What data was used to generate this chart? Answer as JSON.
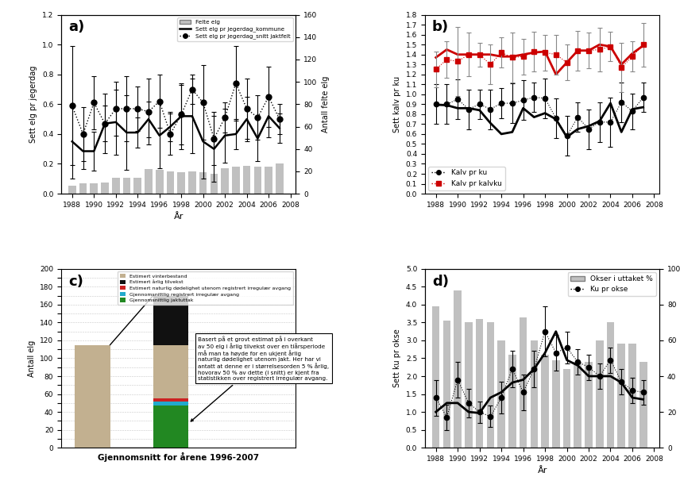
{
  "years": [
    1988,
    1989,
    1990,
    1991,
    1992,
    1993,
    1994,
    1995,
    1996,
    1997,
    1998,
    1999,
    2000,
    2001,
    2002,
    2003,
    2004,
    2005,
    2006,
    2007
  ],
  "a_felte_elg": [
    7,
    9,
    9,
    10,
    14,
    14,
    14,
    22,
    21,
    20,
    19,
    20,
    19,
    18,
    23,
    24,
    25,
    24,
    24,
    27
  ],
  "a_sett_kommune": [
    0.35,
    0.285,
    0.285,
    0.47,
    0.48,
    0.41,
    0.41,
    0.5,
    0.39,
    0.45,
    0.52,
    0.52,
    0.35,
    0.3,
    0.39,
    0.4,
    0.5,
    0.37,
    0.52,
    0.44
  ],
  "a_sett_kommune_err": [
    0.25,
    0.12,
    0.13,
    0.2,
    0.22,
    0.25,
    0.1,
    0.12,
    0.22,
    0.1,
    0.22,
    0.25,
    0.25,
    0.22,
    0.18,
    0.1,
    0.15,
    0.15,
    0.14,
    0.1
  ],
  "a_sett_snitt": [
    0.59,
    0.4,
    0.61,
    0.47,
    0.57,
    0.57,
    0.57,
    0.55,
    0.62,
    0.4,
    0.53,
    0.7,
    0.61,
    0.37,
    0.51,
    0.74,
    0.57,
    0.51,
    0.65,
    0.5
  ],
  "a_sett_snitt_err": [
    0.4,
    0.18,
    0.18,
    0.12,
    0.18,
    0.22,
    0.15,
    0.22,
    0.18,
    0.14,
    0.2,
    0.1,
    0.25,
    0.18,
    0.1,
    0.25,
    0.2,
    0.15,
    0.2,
    0.1
  ],
  "a_felte_scale": 160,
  "a_felte_max_raw": 160,
  "b_kalv_ku": [
    0.9,
    0.9,
    0.95,
    0.85,
    0.9,
    0.85,
    0.91,
    0.91,
    0.94,
    0.97,
    0.96,
    0.76,
    0.58,
    0.77,
    0.65,
    0.72,
    0.72,
    0.92,
    0.83,
    0.97
  ],
  "b_kalv_ku_err": [
    0.2,
    0.2,
    0.2,
    0.2,
    0.15,
    0.2,
    0.15,
    0.2,
    0.2,
    0.15,
    0.2,
    0.2,
    0.2,
    0.15,
    0.2,
    0.2,
    0.25,
    0.2,
    0.18,
    0.15
  ],
  "b_kalv_ku_line": [
    0.895,
    0.89,
    0.86,
    0.86,
    0.84,
    0.71,
    0.6,
    0.62,
    0.86,
    0.77,
    0.81,
    0.75,
    0.57,
    0.65,
    0.68,
    0.73,
    0.91,
    0.62,
    0.85,
    0.87
  ],
  "b_kalv_kalvku": [
    1.25,
    1.35,
    1.33,
    1.4,
    1.4,
    1.3,
    1.42,
    1.37,
    1.38,
    1.43,
    1.42,
    1.4,
    1.32,
    1.44,
    1.44,
    1.45,
    1.48,
    1.27,
    1.38,
    1.5
  ],
  "b_kalv_kalvku_err": [
    0.18,
    0.18,
    0.35,
    0.22,
    0.12,
    0.2,
    0.15,
    0.25,
    0.18,
    0.2,
    0.18,
    0.2,
    0.18,
    0.2,
    0.18,
    0.22,
    0.15,
    0.25,
    0.15,
    0.22
  ],
  "b_kalv_kalvku_line": [
    1.37,
    1.45,
    1.4,
    1.4,
    1.4,
    1.4,
    1.38,
    1.38,
    1.4,
    1.42,
    1.43,
    1.2,
    1.32,
    1.44,
    1.44,
    1.5,
    1.48,
    1.3,
    1.41,
    1.49
  ],
  "c_vinterbestand": 115,
  "c_tilvekst": 55,
  "c_nat_dod": 3,
  "c_irreg": 5,
  "c_jakt": 47,
  "c_colors": [
    "#c2b090",
    "#111111",
    "#cc2222",
    "#22aacc",
    "#228822"
  ],
  "c_legend_labels": [
    "Estimert vinterbestand",
    "Estimert årlig tilvekst",
    "Estimert naturlig dødelighet utenom registrert irregulær avgang",
    "Gjennomsnittlig registrert irregulær avgang",
    "Gjennomsnittlig jaktuttak"
  ],
  "c_xlabel": "Gjennomsnitt for årene 1996-2007",
  "c_ylabel": "Antall elg",
  "c_annotation": "Basert på et grovt estimat på i overkant\nav 50 elg i årlig tilvekst over en tiårsperiode\nmå man ta høyde for en ukjent årlig\nnaturlig dødelighet utenom jakt. Her har vi\nantatt at denne er i størrelsesorden 5 % årlig,\nhovorav 50 % av dette (i snitt) er kjent fra\nstatistikken over registrert irregulær avgang.",
  "d_okser_pct": [
    79,
    71,
    88,
    70,
    72,
    70,
    60,
    52,
    73,
    60,
    52,
    49,
    44,
    48,
    48,
    60,
    70,
    58,
    58,
    48
  ],
  "d_ku_okse": [
    1.4,
    0.85,
    1.9,
    1.25,
    1.0,
    0.87,
    1.4,
    2.2,
    1.55,
    2.2,
    3.25,
    2.65,
    2.8,
    2.4,
    2.25,
    2.0,
    2.45,
    1.85,
    1.6,
    1.55
  ],
  "d_ku_okse_err": [
    0.5,
    0.35,
    0.5,
    0.4,
    0.3,
    0.3,
    0.45,
    0.5,
    0.5,
    0.5,
    0.7,
    0.5,
    0.45,
    0.35,
    0.35,
    0.35,
    0.35,
    0.35,
    0.35,
    0.35
  ],
  "d_ku_okse_line": [
    1.0,
    1.25,
    1.25,
    1.0,
    0.97,
    1.4,
    1.55,
    1.82,
    1.9,
    2.2,
    2.65,
    3.25,
    2.45,
    2.3,
    2.0,
    2.0,
    2.0,
    1.82,
    1.4,
    1.35
  ],
  "bar_color": "#c0c0c0",
  "line_color": "#000000",
  "red_color": "#cc0000",
  "background": "#ffffff",
  "a_ylabel": "Sett elg pr jegerdag",
  "a_ylabel2": "Antall felte elg",
  "a_legend1": "Felte elg",
  "a_legend2": "Sett elg pr jegerdag_kommune",
  "a_legend3": "Sett elg pr jegerdag_snitt jaktfelt",
  "b_ylabel": "Sett kalv pr ku",
  "b_legend1": "Kalv pr ku",
  "b_legend2": "Kalv pr kalvku",
  "d_ylabel1": "Sett ku pr okse",
  "d_ylabel2": "Prosentandel okser i uttaket",
  "d_legend1": "Okser i uttaket %",
  "d_legend2": "Ku pr okse",
  "xlabel_year": "År"
}
